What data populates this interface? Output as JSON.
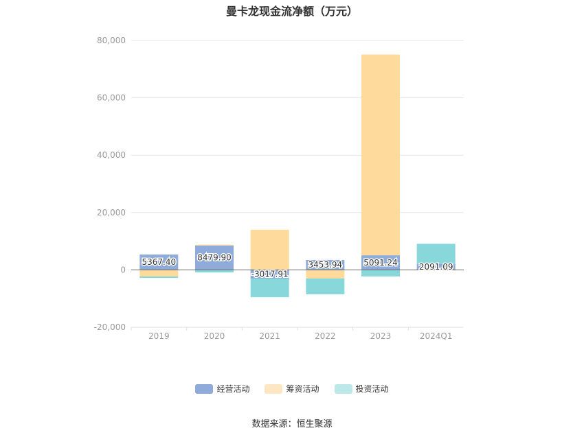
{
  "chart_data": {
    "type": "bar",
    "stacked": true,
    "title": "曼卡龙现金流净额（万元）",
    "categories": [
      "2019",
      "2020",
      "2021",
      "2022",
      "2023",
      "2024Q1"
    ],
    "yticks": [
      "80,000",
      "60,000",
      "40,000",
      "20,000",
      "0",
      "-20,000"
    ],
    "ylim": [
      -20000,
      80000
    ],
    "grid": true,
    "legend_position": "bottom",
    "series": [
      {
        "name": "经营活动",
        "color": "#8eabd9",
        "values": [
          5367.4,
          8479.9,
          -3017.91,
          3453.94,
          5091.24,
          2091.09
        ],
        "labels": [
          "5367.40",
          "8479.90",
          "-3017.91",
          "3453.94",
          "5091.24",
          "2091.09"
        ]
      },
      {
        "name": "筹资活动",
        "color": "#fedb9c",
        "values": [
          -2300,
          300,
          14000,
          -3000,
          70000,
          -200
        ]
      },
      {
        "name": "投资活动",
        "color": "#88d7da",
        "values": [
          -500,
          -900,
          -6500,
          -5500,
          -2300,
          7000
        ]
      }
    ]
  },
  "source": "数据来源：恒生聚源"
}
